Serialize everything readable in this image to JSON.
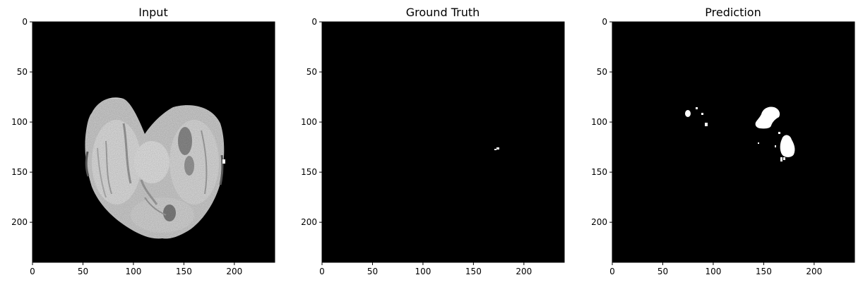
{
  "panels": [
    {
      "id": "input",
      "title": "Input",
      "x_ticks": [
        0,
        50,
        100,
        150,
        200
      ],
      "y_ticks": [
        0,
        50,
        100,
        150,
        200
      ],
      "extent": [
        0,
        240
      ]
    },
    {
      "id": "ground-truth",
      "title": "Ground Truth",
      "x_ticks": [
        0,
        50,
        100,
        150,
        200
      ],
      "y_ticks": [
        0,
        50,
        100,
        150,
        200
      ],
      "extent": [
        0,
        240
      ]
    },
    {
      "id": "prediction",
      "title": "Prediction",
      "x_ticks": [
        0,
        50,
        100,
        150,
        200
      ],
      "y_ticks": [
        0,
        50,
        100,
        150,
        200
      ],
      "extent": [
        0,
        240
      ]
    }
  ],
  "colors": {
    "background": "#000000",
    "foreground": "#ffffff",
    "tissue": "#d2d2d2"
  }
}
